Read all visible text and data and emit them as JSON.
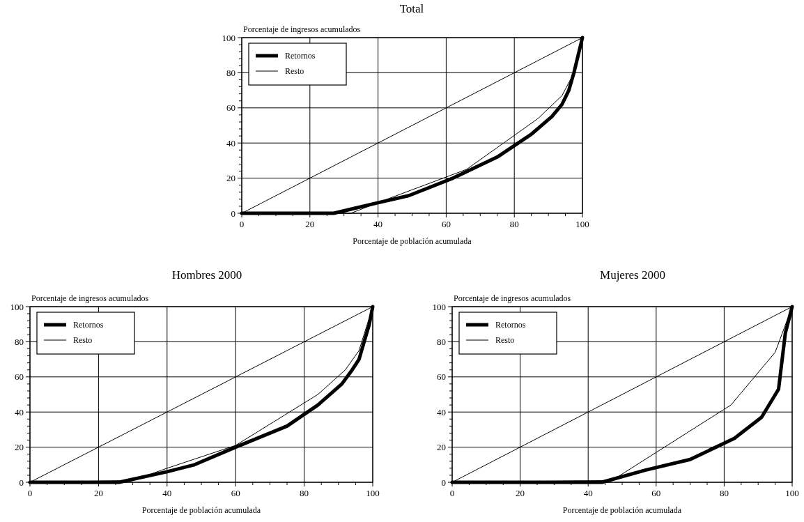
{
  "chart_data": [
    {
      "type": "line",
      "title": "Total",
      "xlabel": "Porcentaje de población acumulada",
      "ylabel": "Porcentaje de ingresos acumulados",
      "xlim": [
        0,
        100
      ],
      "ylim": [
        0,
        100
      ],
      "xticks": [
        0,
        {
          "value": 5,
          "label": null
        },
        {
          "value": 10,
          "label": null
        },
        {
          "value": 15,
          "label": null
        },
        20,
        {
          "value": 25,
          "label": null
        },
        {
          "value": 30,
          "label": null
        },
        {
          "value": 35,
          "label": null
        },
        40,
        {
          "value": 45,
          "label": null
        },
        {
          "value": 50,
          "label": null
        },
        {
          "value": 55,
          "label": null
        },
        60,
        {
          "value": 65,
          "label": null
        },
        {
          "value": 70,
          "label": null
        },
        {
          "value": 75,
          "label": null
        },
        80,
        {
          "value": 85,
          "label": null
        },
        {
          "value": 90,
          "label": null
        },
        {
          "value": 95,
          "label": null
        },
        100
      ],
      "yticks": [
        0,
        {
          "value": 4,
          "label": null
        },
        {
          "value": 8,
          "label": null
        },
        {
          "value": 12,
          "label": null
        },
        {
          "value": 16,
          "label": null
        },
        20,
        {
          "value": 24,
          "label": null
        },
        {
          "value": 28,
          "label": null
        },
        {
          "value": 32,
          "label": null
        },
        {
          "value": 36,
          "label": null
        },
        40,
        {
          "value": 44,
          "label": null
        },
        {
          "value": 48,
          "label": null
        },
        {
          "value": 52,
          "label": null
        },
        {
          "value": 56,
          "label": null
        },
        60,
        {
          "value": 64,
          "label": null
        },
        {
          "value": 68,
          "label": null
        },
        {
          "value": 72,
          "label": null
        },
        {
          "value": 76,
          "label": null
        },
        80,
        {
          "value": 84,
          "label": null
        },
        {
          "value": 88,
          "label": null
        },
        {
          "value": 92,
          "label": null
        },
        {
          "value": 96,
          "label": null
        },
        100
      ],
      "grid": true,
      "legend": "top left",
      "line_style": "solid",
      "series": [
        {
          "name": "Retornos",
          "color": "#000000",
          "x": [
            0,
            27,
            40,
            49,
            62,
            75,
            85,
            91,
            94,
            96,
            97.5,
            99,
            100
          ],
          "values": [
            0,
            0,
            6,
            10,
            20,
            32,
            45,
            55,
            62,
            70,
            80,
            92,
            100
          ]
        },
        {
          "name": "Resto",
          "color": "#000000",
          "x": [
            0,
            32,
            44,
            66,
            87,
            94,
            97,
            100
          ],
          "values": [
            0,
            0,
            9,
            25,
            54,
            67,
            78,
            100
          ]
        },
        {
          "color": "#000000",
          "x": [
            0,
            100
          ],
          "values": [
            0,
            100
          ]
        }
      ]
    },
    {
      "type": "line",
      "title": "Hombres 2000",
      "xlabel": "Porcentaje de población acumulada",
      "ylabel": "Porcentaje de ingresos acumulados",
      "xlim": [
        0,
        100
      ],
      "ylim": [
        0,
        100
      ],
      "xticks": [
        0,
        {
          "value": 5,
          "label": null
        },
        {
          "value": 10,
          "label": null
        },
        {
          "value": 15,
          "label": null
        },
        20,
        {
          "value": 25,
          "label": null
        },
        {
          "value": 30,
          "label": null
        },
        {
          "value": 35,
          "label": null
        },
        40,
        {
          "value": 45,
          "label": null
        },
        {
          "value": 50,
          "label": null
        },
        {
          "value": 55,
          "label": null
        },
        60,
        {
          "value": 65,
          "label": null
        },
        {
          "value": 70,
          "label": null
        },
        {
          "value": 75,
          "label": null
        },
        80,
        {
          "value": 85,
          "label": null
        },
        {
          "value": 90,
          "label": null
        },
        {
          "value": 95,
          "label": null
        },
        100
      ],
      "yticks": [
        0,
        {
          "value": 4,
          "label": null
        },
        {
          "value": 8,
          "label": null
        },
        {
          "value": 12,
          "label": null
        },
        {
          "value": 16,
          "label": null
        },
        20,
        {
          "value": 24,
          "label": null
        },
        {
          "value": 28,
          "label": null
        },
        {
          "value": 32,
          "label": null
        },
        {
          "value": 36,
          "label": null
        },
        40,
        {
          "value": 44,
          "label": null
        },
        {
          "value": 48,
          "label": null
        },
        {
          "value": 52,
          "label": null
        },
        {
          "value": 56,
          "label": null
        },
        60,
        {
          "value": 64,
          "label": null
        },
        {
          "value": 68,
          "label": null
        },
        {
          "value": 72,
          "label": null
        },
        {
          "value": 76,
          "label": null
        },
        80,
        {
          "value": 84,
          "label": null
        },
        {
          "value": 88,
          "label": null
        },
        {
          "value": 92,
          "label": null
        },
        {
          "value": 96,
          "label": null
        },
        100
      ],
      "grid": true,
      "legend": "top left",
      "line_style": "solid",
      "series": [
        {
          "name": "Retornos",
          "color": "#000000",
          "x": [
            0,
            26,
            40,
            48,
            60,
            75,
            84,
            91,
            94,
            96,
            97.5,
            99,
            100
          ],
          "values": [
            0,
            0,
            6,
            10,
            20,
            32,
            44,
            56,
            64,
            70,
            80,
            90,
            100
          ]
        },
        {
          "name": "Resto",
          "color": "#000000",
          "x": [
            0,
            30,
            40,
            60,
            84,
            92,
            96,
            100
          ],
          "values": [
            0,
            1,
            8,
            21,
            50,
            64,
            75,
            100
          ]
        },
        {
          "color": "#000000",
          "x": [
            0,
            100
          ],
          "values": [
            0,
            100
          ]
        }
      ]
    },
    {
      "type": "line",
      "title": "Mujeres 2000",
      "xlabel": "Porcentaje de población acumulada",
      "ylabel": "Porcentaje de ingresos acumulados",
      "xlim": [
        0,
        100
      ],
      "ylim": [
        0,
        100
      ],
      "xticks": [
        0,
        {
          "value": 5,
          "label": null
        },
        {
          "value": 10,
          "label": null
        },
        {
          "value": 15,
          "label": null
        },
        20,
        {
          "value": 25,
          "label": null
        },
        {
          "value": 30,
          "label": null
        },
        {
          "value": 35,
          "label": null
        },
        40,
        {
          "value": 45,
          "label": null
        },
        {
          "value": 50,
          "label": null
        },
        {
          "value": 55,
          "label": null
        },
        60,
        {
          "value": 65,
          "label": null
        },
        {
          "value": 70,
          "label": null
        },
        {
          "value": 75,
          "label": null
        },
        80,
        {
          "value": 85,
          "label": null
        },
        {
          "value": 90,
          "label": null
        },
        {
          "value": 95,
          "label": null
        },
        100
      ],
      "yticks": [
        0,
        {
          "value": 4,
          "label": null
        },
        {
          "value": 8,
          "label": null
        },
        {
          "value": 12,
          "label": null
        },
        {
          "value": 16,
          "label": null
        },
        20,
        {
          "value": 24,
          "label": null
        },
        {
          "value": 28,
          "label": null
        },
        {
          "value": 32,
          "label": null
        },
        {
          "value": 36,
          "label": null
        },
        40,
        {
          "value": 44,
          "label": null
        },
        {
          "value": 48,
          "label": null
        },
        {
          "value": 52,
          "label": null
        },
        {
          "value": 56,
          "label": null
        },
        60,
        {
          "value": 64,
          "label": null
        },
        {
          "value": 68,
          "label": null
        },
        {
          "value": 72,
          "label": null
        },
        {
          "value": 76,
          "label": null
        },
        80,
        {
          "value": 84,
          "label": null
        },
        {
          "value": 88,
          "label": null
        },
        {
          "value": 92,
          "label": null
        },
        {
          "value": 96,
          "label": null
        },
        100
      ],
      "grid": true,
      "legend": "top left",
      "line_style": "solid",
      "series": [
        {
          "name": "Retornos",
          "color": "#000000",
          "x": [
            0,
            44,
            57,
            70,
            83,
            91,
            96,
            98,
            100
          ],
          "values": [
            0,
            0,
            7,
            13,
            25,
            37,
            53,
            85,
            100
          ]
        },
        {
          "name": "Resto",
          "color": "#000000",
          "x": [
            0,
            47,
            60,
            82,
            95,
            100
          ],
          "values": [
            0,
            1,
            17,
            44,
            74,
            100
          ]
        },
        {
          "color": "#000000",
          "x": [
            0,
            100
          ],
          "values": [
            0,
            100
          ]
        }
      ]
    }
  ]
}
